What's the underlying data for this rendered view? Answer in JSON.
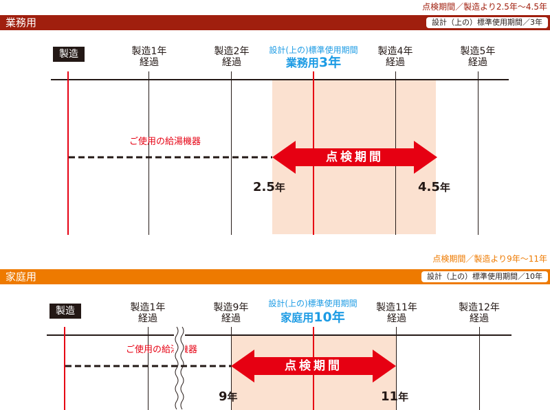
{
  "colors": {
    "business_band": "#a01f0e",
    "household_band": "#ee7a00",
    "accent_red": "#e60012",
    "accent_blue": "#1c9be4",
    "inspection_shade": "#fbe1d0",
    "dark": "#231815"
  },
  "business": {
    "top_note": "点検期間／製造より2.5年〜4.5年",
    "title": "業務用",
    "std_pill": "設計（上の）標準使用期間／3年",
    "mfg_box": "製造",
    "columns": [
      {
        "line1": "製造1年",
        "line2": "経過"
      },
      {
        "line1": "製造2年",
        "line2": "経過"
      },
      {
        "line1": "製造4年",
        "line2": "経過"
      },
      {
        "line1": "製造5年",
        "line2": "経過"
      }
    ],
    "std_caption": "設計(上の)標準使用期間",
    "std_main_prefix": "業務用",
    "std_main_value": "3年",
    "device_label": "ご使用の給湯機器",
    "inspection_label": "点検期間",
    "start_value": "2.5",
    "end_value": "4.5",
    "year_unit": "年"
  },
  "household": {
    "top_note": "点検期間／製造より9年〜11年",
    "title": "家庭用",
    "std_pill": "設計（上の）標準使用期間／10年",
    "mfg_box": "製造",
    "columns": [
      {
        "line1": "製造1年",
        "line2": "経過"
      },
      {
        "line1": "製造9年",
        "line2": "経過"
      },
      {
        "line1": "製造11年",
        "line2": "経過"
      },
      {
        "line1": "製造12年",
        "line2": "経過"
      }
    ],
    "std_caption": "設計(上の)標準使用期間",
    "std_main_prefix": "家庭用",
    "std_main_value": "10年",
    "device_label": "ご使用の給湯機器",
    "inspection_label": "点検期間",
    "start_value": "9",
    "end_value": "11",
    "year_unit": "年"
  },
  "icons": [
    "double-left-right-arrow-icon",
    "wavy-break-icon"
  ]
}
